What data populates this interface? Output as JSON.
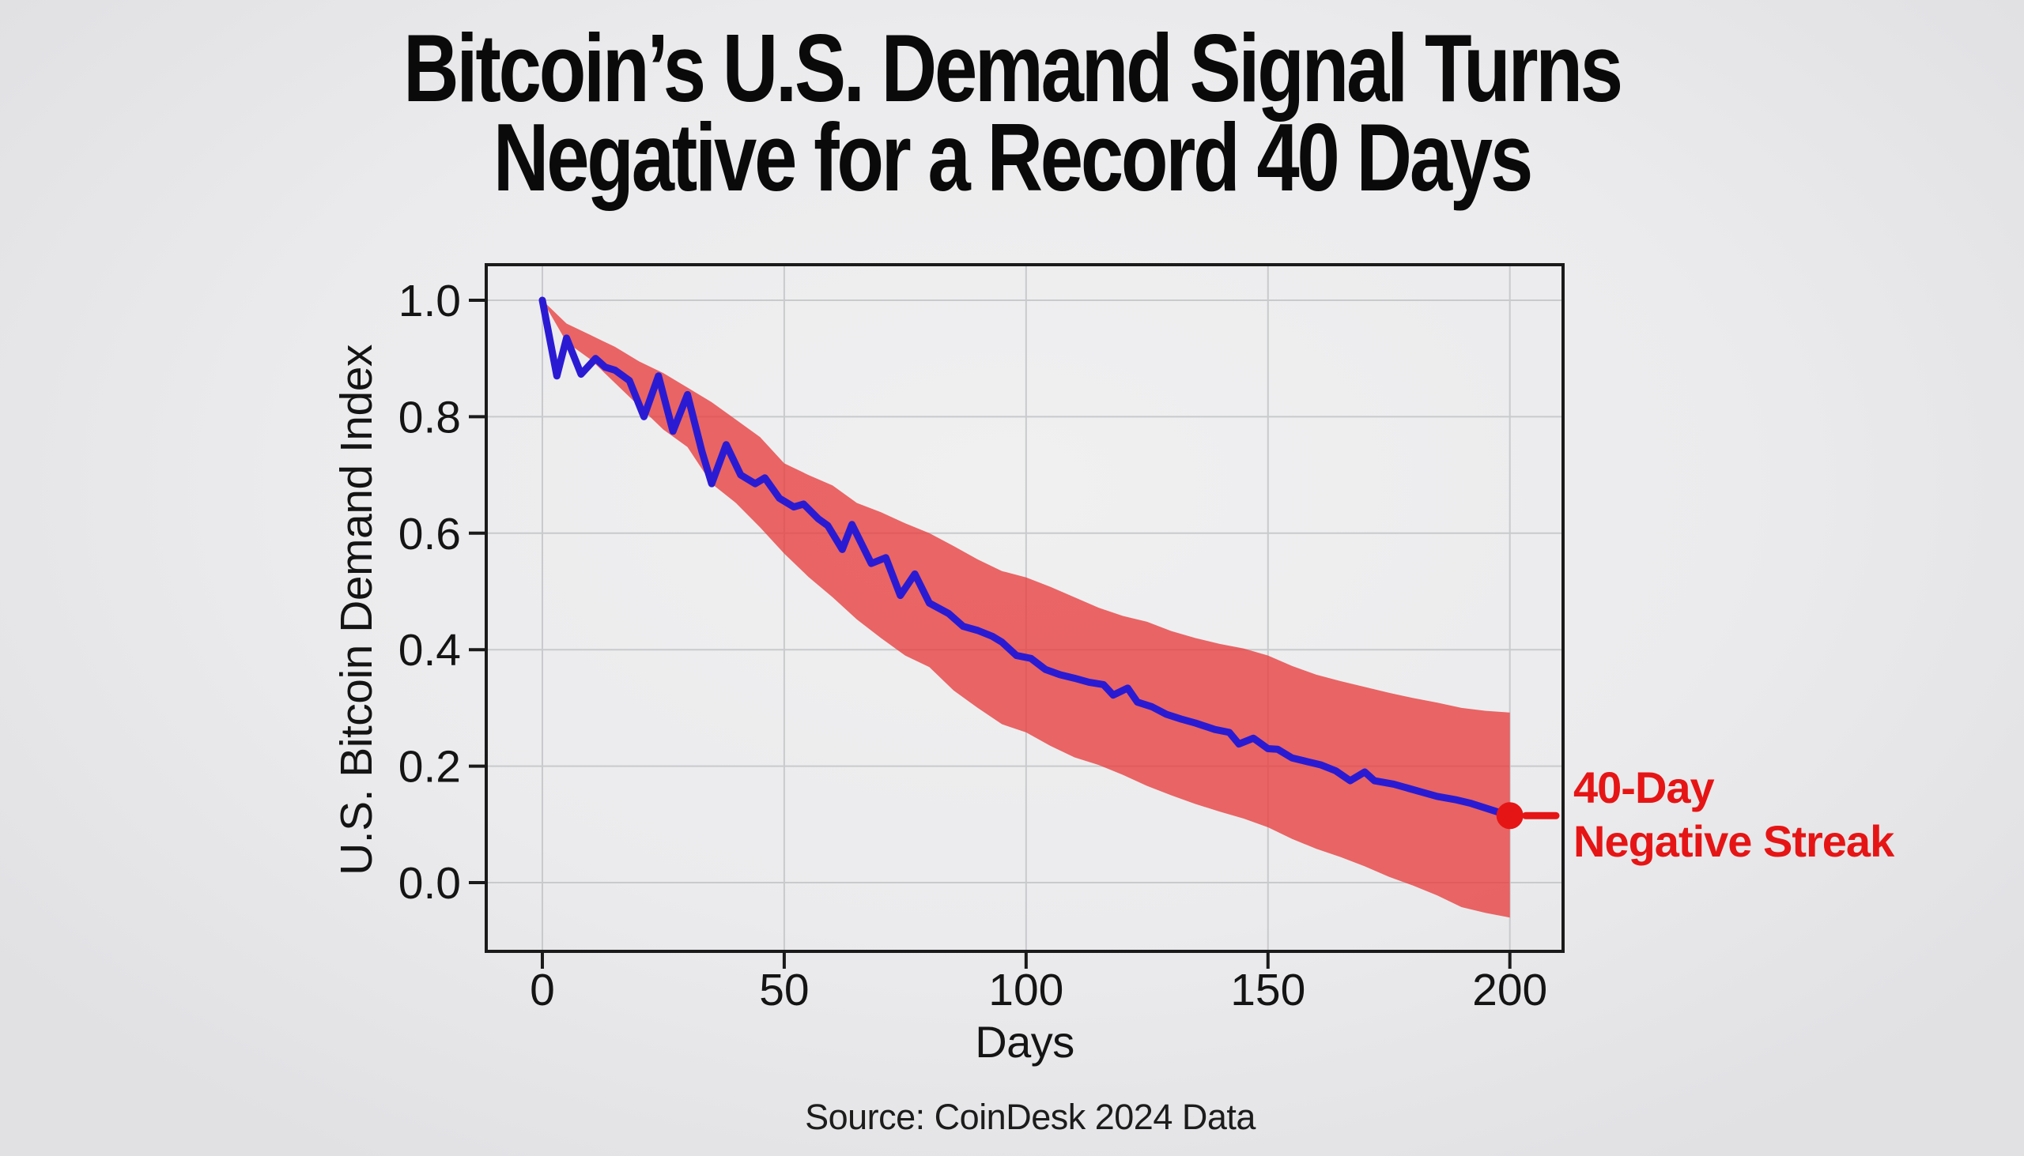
{
  "title": {
    "line1": "Bitcoin’s U.S. Demand Signal Turns",
    "line2": "Negative for a Record 40 Days"
  },
  "source": "Source: CoinDesk 2024 Data",
  "annotation": {
    "line1": "40-Day",
    "line2": "Negative Streak",
    "dot_day": 200,
    "dot_value": 0.115
  },
  "colors": {
    "background": "#ececee",
    "title_text": "#0a0a0a",
    "grid": "#c8cacc",
    "spine": "#1a1a1a",
    "tick_text": "#141414",
    "axis_label_text": "#141414",
    "source_text": "#1c1c1c",
    "line": "#2a1bd3",
    "band_fill": "#e83e3e",
    "band_opacity": 0.78,
    "accent_red": "#e61515"
  },
  "chart_data": {
    "type": "line",
    "title": "",
    "xlabel": "Days",
    "ylabel": "U.S. Bitcoin Demand Index",
    "xlim": [
      -11.6,
      211
    ],
    "ylim": [
      -0.118,
      1.061
    ],
    "grid": true,
    "legend": "none",
    "x_tick_values": [
      0,
      50,
      100,
      150,
      200
    ],
    "x_tick_labels": [
      "0",
      "50",
      "100",
      "150",
      "200"
    ],
    "y_tick_values": [
      1.0,
      0.8,
      0.6,
      0.4,
      0.2,
      0.0
    ],
    "y_tick_labels": [
      "1.0",
      "0.8",
      "0.6",
      "0.4",
      "0.2",
      "0.0"
    ],
    "series": [
      {
        "name": "U.S. Bitcoin Demand Index",
        "x": [
          0,
          3,
          5,
          8,
          11,
          13,
          15,
          18,
          21,
          24,
          27,
          30,
          33,
          35,
          38,
          41,
          44,
          46,
          49,
          52,
          54,
          57,
          59,
          62,
          64,
          68,
          71,
          74,
          77,
          80,
          84,
          87,
          90,
          93,
          95,
          98,
          101,
          104,
          107,
          110,
          113,
          116,
          118,
          121,
          123,
          126,
          129,
          132,
          135,
          139,
          142,
          144,
          147,
          150,
          152,
          155,
          158,
          161,
          164,
          167,
          170,
          172,
          176,
          179,
          182,
          185,
          189,
          192,
          195,
          198,
          200
        ],
        "y": [
          1.0,
          0.87,
          0.935,
          0.873,
          0.9,
          0.885,
          0.88,
          0.862,
          0.8,
          0.87,
          0.775,
          0.838,
          0.74,
          0.685,
          0.752,
          0.7,
          0.685,
          0.695,
          0.66,
          0.645,
          0.65,
          0.625,
          0.613,
          0.572,
          0.615,
          0.548,
          0.558,
          0.493,
          0.53,
          0.48,
          0.462,
          0.44,
          0.433,
          0.423,
          0.413,
          0.39,
          0.385,
          0.366,
          0.357,
          0.351,
          0.344,
          0.34,
          0.322,
          0.334,
          0.31,
          0.302,
          0.289,
          0.281,
          0.274,
          0.263,
          0.258,
          0.238,
          0.248,
          0.23,
          0.229,
          0.214,
          0.208,
          0.202,
          0.192,
          0.175,
          0.19,
          0.175,
          0.169,
          0.162,
          0.155,
          0.148,
          0.142,
          0.136,
          0.128,
          0.12,
          0.115
        ]
      }
    ],
    "band": {
      "name": "confidence-band",
      "x": [
        0,
        5,
        10,
        15,
        20,
        25,
        30,
        35,
        40,
        45,
        50,
        55,
        60,
        65,
        70,
        75,
        80,
        85,
        90,
        95,
        100,
        105,
        110,
        115,
        120,
        125,
        130,
        135,
        140,
        145,
        150,
        155,
        160,
        165,
        170,
        175,
        180,
        185,
        190,
        195,
        200
      ],
      "upper": [
        1.0,
        0.96,
        0.94,
        0.92,
        0.895,
        0.875,
        0.85,
        0.825,
        0.795,
        0.765,
        0.72,
        0.7,
        0.682,
        0.652,
        0.636,
        0.617,
        0.6,
        0.578,
        0.555,
        0.535,
        0.524,
        0.508,
        0.49,
        0.472,
        0.458,
        0.448,
        0.432,
        0.42,
        0.41,
        0.402,
        0.39,
        0.372,
        0.357,
        0.346,
        0.336,
        0.326,
        0.317,
        0.309,
        0.3,
        0.295,
        0.292
      ],
      "lower": [
        1.0,
        0.928,
        0.898,
        0.858,
        0.818,
        0.778,
        0.748,
        0.685,
        0.652,
        0.61,
        0.565,
        0.525,
        0.49,
        0.452,
        0.42,
        0.39,
        0.37,
        0.33,
        0.3,
        0.272,
        0.258,
        0.235,
        0.215,
        0.202,
        0.185,
        0.166,
        0.15,
        0.135,
        0.122,
        0.11,
        0.095,
        0.075,
        0.058,
        0.044,
        0.028,
        0.01,
        -0.005,
        -0.022,
        -0.042,
        -0.052,
        -0.06
      ]
    }
  }
}
